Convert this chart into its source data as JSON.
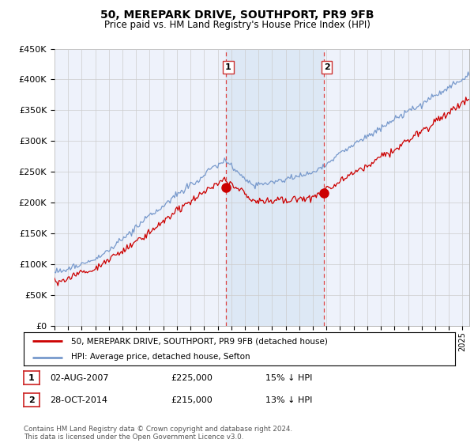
{
  "title": "50, MEREPARK DRIVE, SOUTHPORT, PR9 9FB",
  "subtitle": "Price paid vs. HM Land Registry's House Price Index (HPI)",
  "ylim": [
    0,
    450000
  ],
  "xlim_start": 1995.0,
  "xlim_end": 2025.5,
  "transaction1": {
    "date_num": 2007.58,
    "price": 225000,
    "label": "1",
    "date_str": "02-AUG-2007",
    "price_str": "£225,000",
    "hpi_str": "15% ↓ HPI"
  },
  "transaction2": {
    "date_num": 2014.83,
    "price": 215000,
    "label": "2",
    "date_str": "28-OCT-2014",
    "price_str": "£215,000",
    "hpi_str": "13% ↓ HPI"
  },
  "legend_label_red": "50, MEREPARK DRIVE, SOUTHPORT, PR9 9FB (detached house)",
  "legend_label_blue": "HPI: Average price, detached house, Sefton",
  "footnote": "Contains HM Land Registry data © Crown copyright and database right 2024.\nThis data is licensed under the Open Government Licence v3.0.",
  "red_color": "#cc0000",
  "blue_color": "#7799cc",
  "shade_color": "#dde8f5",
  "vline_color": "#dd4444",
  "background_chart": "#eef2fb",
  "grid_color": "#cccccc",
  "ytick_labels": [
    "£0",
    "£50K",
    "£100K",
    "£150K",
    "£200K",
    "£250K",
    "£300K",
    "£350K",
    "£400K",
    "£450K"
  ],
  "ytick_vals": [
    0,
    50000,
    100000,
    150000,
    200000,
    250000,
    300000,
    350000,
    400000,
    450000
  ]
}
